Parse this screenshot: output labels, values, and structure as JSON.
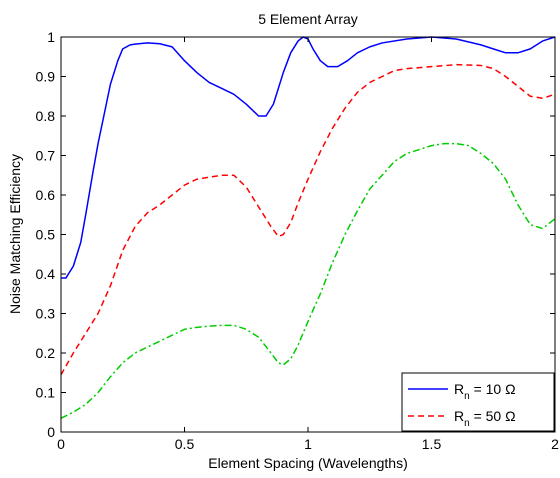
{
  "chart_data": {
    "type": "line",
    "title": "5 Element Array",
    "xlabel": "Element Spacing (Wavelengths)",
    "ylabel": "Noise Matching Efficiency",
    "xlim": [
      0,
      2
    ],
    "ylim": [
      0,
      1
    ],
    "xticks": [
      "0",
      "0.5",
      "1",
      "1.5",
      "2"
    ],
    "yticks": [
      "0",
      "0.1",
      "0.2",
      "0.3",
      "0.4",
      "0.5",
      "0.6",
      "0.7",
      "0.8",
      "0.9",
      "1"
    ],
    "grid": false,
    "legend_position": "bottom-right",
    "series": [
      {
        "name": "R_n = 10 Ω",
        "legend_main": "R",
        "legend_sub": "n",
        "legend_rest": " = 10 Ω",
        "color": "#0000ff",
        "style": "solid",
        "x": [
          0,
          0.02,
          0.05,
          0.08,
          0.1,
          0.13,
          0.15,
          0.18,
          0.2,
          0.23,
          0.25,
          0.28,
          0.3,
          0.35,
          0.4,
          0.45,
          0.5,
          0.55,
          0.6,
          0.65,
          0.7,
          0.75,
          0.8,
          0.83,
          0.86,
          0.9,
          0.93,
          0.96,
          0.98,
          1.0,
          1.02,
          1.05,
          1.08,
          1.12,
          1.16,
          1.2,
          1.25,
          1.3,
          1.4,
          1.5,
          1.6,
          1.7,
          1.75,
          1.8,
          1.85,
          1.9,
          1.95,
          2.0
        ],
        "y": [
          0.39,
          0.39,
          0.42,
          0.48,
          0.55,
          0.66,
          0.73,
          0.82,
          0.88,
          0.94,
          0.97,
          0.98,
          0.982,
          0.985,
          0.983,
          0.975,
          0.94,
          0.91,
          0.885,
          0.87,
          0.855,
          0.83,
          0.8,
          0.8,
          0.83,
          0.91,
          0.96,
          0.99,
          1.0,
          0.995,
          0.97,
          0.94,
          0.925,
          0.925,
          0.94,
          0.96,
          0.975,
          0.985,
          0.995,
          1.0,
          0.995,
          0.98,
          0.97,
          0.96,
          0.96,
          0.97,
          0.99,
          1.0
        ]
      },
      {
        "name": "R_n = 50 Ω",
        "legend_main": "R",
        "legend_sub": "n",
        "legend_rest": " = 50 Ω",
        "color": "#ff0000",
        "style": "dashed",
        "x": [
          0,
          0.05,
          0.1,
          0.15,
          0.2,
          0.25,
          0.3,
          0.35,
          0.4,
          0.45,
          0.5,
          0.55,
          0.6,
          0.65,
          0.7,
          0.75,
          0.8,
          0.85,
          0.88,
          0.9,
          0.93,
          0.96,
          1.0,
          1.05,
          1.1,
          1.15,
          1.2,
          1.25,
          1.3,
          1.35,
          1.4,
          1.5,
          1.6,
          1.7,
          1.75,
          1.8,
          1.85,
          1.9,
          1.95,
          2.0
        ],
        "y": [
          0.145,
          0.2,
          0.25,
          0.3,
          0.37,
          0.46,
          0.52,
          0.555,
          0.575,
          0.6,
          0.625,
          0.64,
          0.645,
          0.65,
          0.65,
          0.62,
          0.57,
          0.52,
          0.495,
          0.5,
          0.53,
          0.58,
          0.64,
          0.71,
          0.77,
          0.82,
          0.86,
          0.885,
          0.9,
          0.915,
          0.92,
          0.925,
          0.93,
          0.928,
          0.92,
          0.9,
          0.875,
          0.85,
          0.845,
          0.855
        ]
      },
      {
        "color": "#00cc00",
        "style": "dashdot",
        "x": [
          0,
          0.05,
          0.1,
          0.15,
          0.2,
          0.25,
          0.3,
          0.35,
          0.4,
          0.45,
          0.5,
          0.55,
          0.6,
          0.65,
          0.7,
          0.75,
          0.8,
          0.85,
          0.88,
          0.9,
          0.93,
          0.96,
          1.0,
          1.05,
          1.1,
          1.15,
          1.2,
          1.25,
          1.3,
          1.35,
          1.4,
          1.45,
          1.5,
          1.55,
          1.6,
          1.65,
          1.7,
          1.75,
          1.8,
          1.85,
          1.9,
          1.95,
          2.0
        ],
        "y": [
          0.035,
          0.05,
          0.07,
          0.1,
          0.14,
          0.175,
          0.2,
          0.215,
          0.23,
          0.245,
          0.26,
          0.265,
          0.268,
          0.27,
          0.27,
          0.26,
          0.24,
          0.2,
          0.175,
          0.17,
          0.185,
          0.22,
          0.28,
          0.35,
          0.43,
          0.5,
          0.56,
          0.615,
          0.65,
          0.685,
          0.705,
          0.715,
          0.725,
          0.73,
          0.73,
          0.725,
          0.705,
          0.68,
          0.64,
          0.575,
          0.525,
          0.515,
          0.54
        ]
      }
    ]
  }
}
